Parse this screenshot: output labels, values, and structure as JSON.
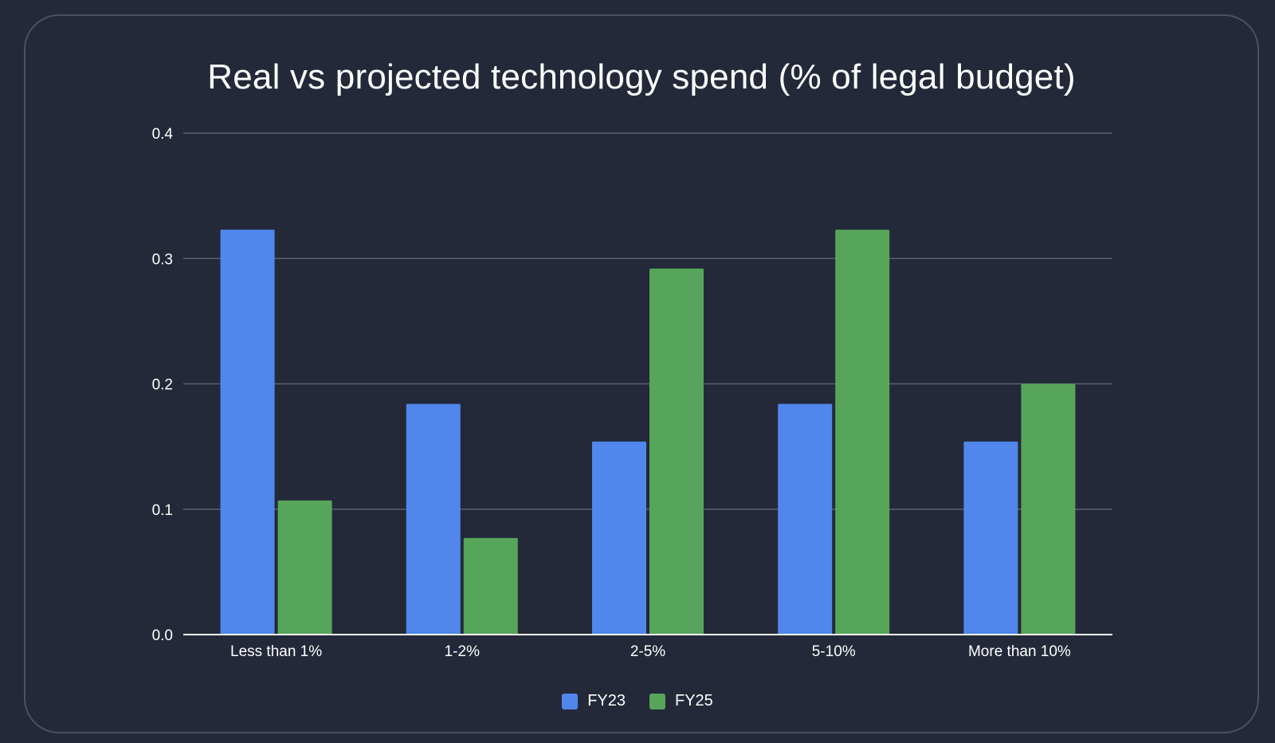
{
  "chart_data": {
    "type": "bar",
    "title": "Real vs projected technology spend (% of legal budget)",
    "categories": [
      "Less than 1%",
      "1-2%",
      "2-5%",
      "5-10%",
      "More than 10%"
    ],
    "series": [
      {
        "name": "FY23",
        "color": "#5186EC",
        "values": [
          0.323,
          0.184,
          0.154,
          0.184,
          0.154
        ]
      },
      {
        "name": "FY25",
        "color": "#57A55A",
        "values": [
          0.107,
          0.077,
          0.292,
          0.323,
          0.2
        ]
      }
    ],
    "ylim": [
      0,
      0.4
    ],
    "yticks": [
      "0.0",
      "0.1",
      "0.2",
      "0.3",
      "0.4"
    ],
    "grid": true,
    "legend": "bottom",
    "xlabel": "",
    "ylabel": ""
  }
}
